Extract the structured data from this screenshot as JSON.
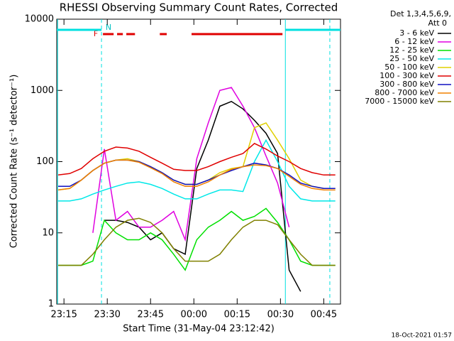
{
  "chart_data": {
    "type": "line",
    "title": "RHESSI Observing Summary Count Rates, Corrected",
    "x_label": "Start Time (31-May-04 23:12:42)",
    "y_label": "Corrected Count Rate (s⁻¹ detector⁻¹)",
    "legend_header": [
      "Det 1,3,4,5,6,9,",
      "Att 0"
    ],
    "footer": "18-Oct-2021 01:57",
    "flag_labels": [
      "F",
      "N"
    ],
    "flag_color": "#e00000",
    "night_color": "#00e0e0",
    "night_bars": [
      [
        1392.5,
        1408.0
      ],
      [
        1471.7,
        1490.8
      ]
    ],
    "flare_bars": [
      [
        1408.5,
        1412.2
      ],
      [
        1413.4,
        1415.4
      ],
      [
        1416.6,
        1419.6
      ],
      [
        1428.2,
        1430.6
      ],
      [
        1439.2,
        1470.7
      ]
    ],
    "dashed_lines": [
      1408.0,
      1487.1
    ],
    "solid_lines": [
      1392.8,
      1471.7
    ],
    "log_y": true,
    "xlim": [
      1392.5,
      1490.8
    ],
    "ylim": [
      1,
      10000
    ],
    "yticks": [
      1,
      10,
      100,
      1000,
      10000
    ],
    "xticks": [
      {
        "value": 1395,
        "label": "23:15"
      },
      {
        "value": 1410,
        "label": "23:30"
      },
      {
        "value": 1425,
        "label": "23:45"
      },
      {
        "value": 1440,
        "label": "00:00"
      },
      {
        "value": 1455,
        "label": "00:15"
      },
      {
        "value": 1470,
        "label": "00:30"
      },
      {
        "value": 1485,
        "label": "00:45"
      }
    ],
    "x": [
      1393,
      1397,
      1401,
      1405,
      1409,
      1413,
      1417,
      1421,
      1425,
      1429,
      1433,
      1437,
      1441,
      1445,
      1449,
      1453,
      1457,
      1461,
      1465,
      1469,
      1473,
      1477,
      1481,
      1485,
      1489
    ],
    "series": [
      {
        "name": "3 - 6 keV",
        "color": "#000000",
        "values": [
          null,
          null,
          null,
          null,
          15,
          15,
          14,
          12,
          8,
          10,
          6,
          5,
          80,
          200,
          600,
          700,
          550,
          380,
          250,
          130,
          3,
          1.5,
          null,
          null,
          null
        ]
      },
      {
        "name": "6 - 12 keV",
        "color": "#e000e0",
        "values": [
          null,
          null,
          null,
          10,
          150,
          15,
          20,
          12,
          12,
          15,
          20,
          8,
          110,
          350,
          1000,
          1100,
          600,
          300,
          120,
          50,
          12,
          null,
          null,
          null,
          null
        ]
      },
      {
        "name": "12 - 25 keV",
        "color": "#00e000",
        "values": [
          3.5,
          3.5,
          3.5,
          4,
          15,
          10,
          8,
          8,
          10,
          8,
          5,
          3,
          8,
          12,
          15,
          20,
          15,
          17,
          22,
          14,
          8,
          4,
          3.5,
          3.5,
          3.5
        ]
      },
      {
        "name": "25 - 50 keV",
        "color": "#00e8e8",
        "values": [
          28,
          28,
          30,
          35,
          40,
          45,
          50,
          52,
          48,
          42,
          35,
          30,
          30,
          35,
          40,
          40,
          38,
          100,
          200,
          100,
          45,
          30,
          28,
          28,
          28
        ]
      },
      {
        "name": "50 - 100 keV",
        "color": "#e0d000",
        "values": [
          40,
          42,
          55,
          75,
          95,
          105,
          110,
          100,
          85,
          70,
          55,
          48,
          48,
          55,
          70,
          80,
          85,
          300,
          350,
          200,
          110,
          55,
          45,
          42,
          42
        ]
      },
      {
        "name": "100 - 300 keV",
        "color": "#e00000",
        "values": [
          65,
          68,
          80,
          110,
          140,
          160,
          155,
          140,
          115,
          95,
          78,
          75,
          75,
          85,
          100,
          115,
          130,
          180,
          150,
          120,
          100,
          80,
          70,
          65,
          65
        ]
      },
      {
        "name": "300 - 800 keV",
        "color": "#1010c0",
        "values": [
          45,
          45,
          55,
          75,
          95,
          105,
          105,
          100,
          85,
          70,
          55,
          48,
          48,
          55,
          65,
          75,
          85,
          95,
          90,
          80,
          65,
          50,
          45,
          42,
          42
        ]
      },
      {
        "name": "800 - 7000 keV",
        "color": "#f08000",
        "values": [
          40,
          42,
          55,
          75,
          95,
          105,
          105,
          98,
          82,
          68,
          52,
          45,
          45,
          52,
          65,
          78,
          85,
          90,
          88,
          80,
          62,
          48,
          42,
          40,
          40
        ]
      },
      {
        "name": "7000 - 15000 keV",
        "color": "#808000",
        "values": [
          3.5,
          3.5,
          3.5,
          5,
          8,
          12,
          15,
          16,
          14,
          10,
          6,
          4,
          4,
          4,
          5,
          8,
          12,
          15,
          15,
          13,
          8,
          5,
          3.5,
          3.5,
          3.5
        ]
      }
    ]
  }
}
